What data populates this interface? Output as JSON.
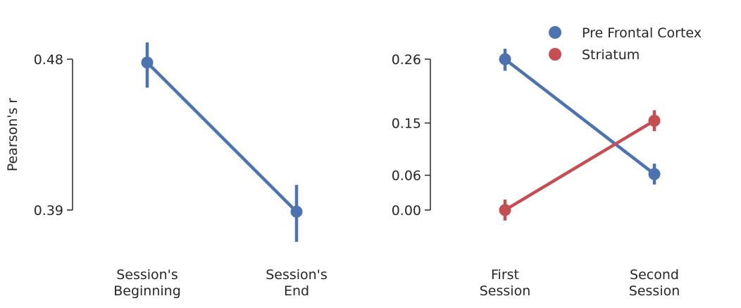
{
  "chart_data": [
    {
      "type": "line",
      "categories": [
        "Session's\nBeginning",
        "Session's\nEnd"
      ],
      "ylabel": "Pearson's r",
      "yticks": [
        0.39,
        0.48
      ],
      "ytick_labels": [
        "0.39",
        "0.48"
      ],
      "ylim": [
        0.39,
        0.48
      ],
      "grid": false,
      "series": [
        {
          "color": "#4c72b0",
          "values": [
            0.478,
            0.389
          ],
          "error_low": [
            0.463,
            0.371
          ],
          "error_high": [
            0.49,
            0.405
          ]
        }
      ]
    },
    {
      "type": "line",
      "categories": [
        "First\nSession",
        "Second\nSession"
      ],
      "yticks": [
        0.0,
        0.06,
        0.15,
        0.26
      ],
      "ytick_labels": [
        "0.00",
        "0.06",
        "0.15",
        "0.26"
      ],
      "ylim": [
        0.0,
        0.26
      ],
      "grid": false,
      "legend_position": "top-right",
      "series": [
        {
          "name": "Pre Frontal Cortex",
          "color": "#4c72b0",
          "values": [
            0.26,
            0.062
          ],
          "error_low": [
            0.24,
            0.044
          ],
          "error_high": [
            0.278,
            0.08
          ]
        },
        {
          "name": "Striatum",
          "color": "#c44e52",
          "values": [
            0.0,
            0.154
          ],
          "error_low": [
            -0.018,
            0.136
          ],
          "error_high": [
            0.018,
            0.172
          ]
        }
      ]
    }
  ]
}
